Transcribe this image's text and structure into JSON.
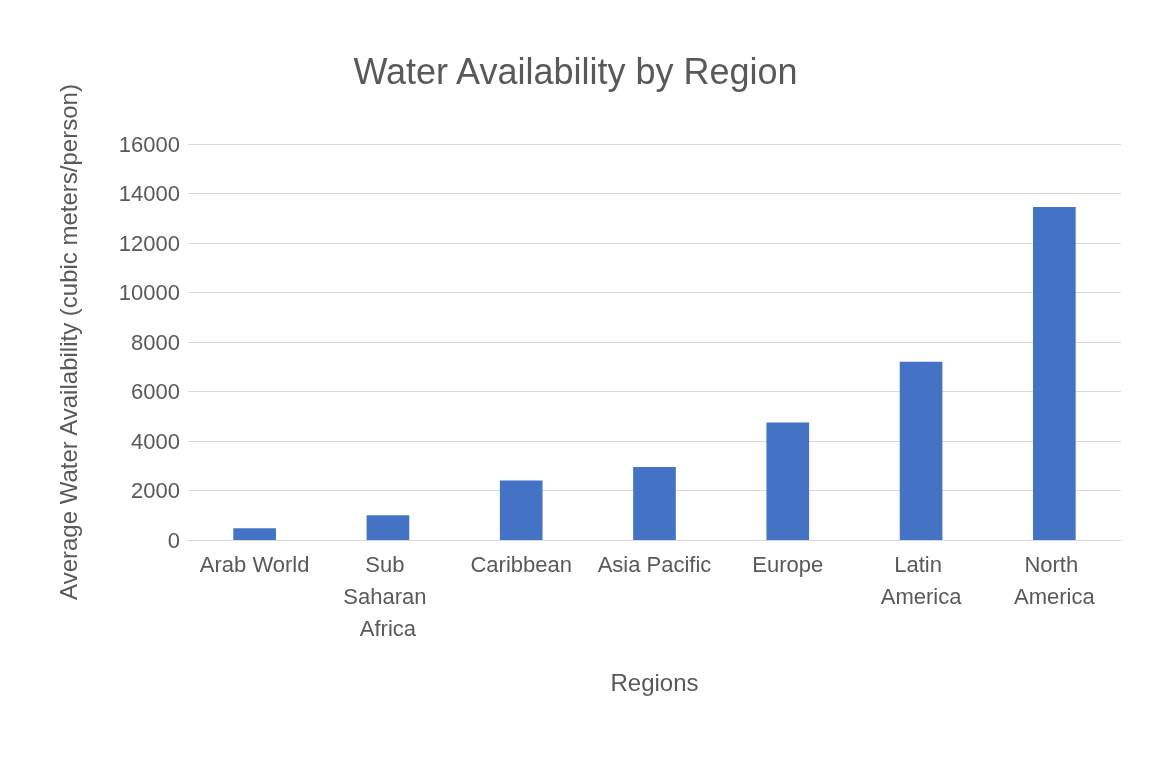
{
  "chart_data": {
    "type": "bar",
    "title": "Water Availability by Region",
    "xlabel": "Regions",
    "ylabel": "Average Water Availability (cubic meters/person)",
    "categories": [
      "Arab World",
      "Sub Saharan Africa",
      "Caribbean",
      "Asia Pacific",
      "Europe",
      "Latin America",
      "North America"
    ],
    "values": [
      470,
      1000,
      2400,
      2950,
      4750,
      7200,
      13450
    ],
    "color": "#4472c4",
    "ylim": [
      0,
      16000
    ],
    "yticks": [
      0,
      2000,
      4000,
      6000,
      8000,
      10000,
      12000,
      14000,
      16000
    ],
    "grid": "y"
  }
}
